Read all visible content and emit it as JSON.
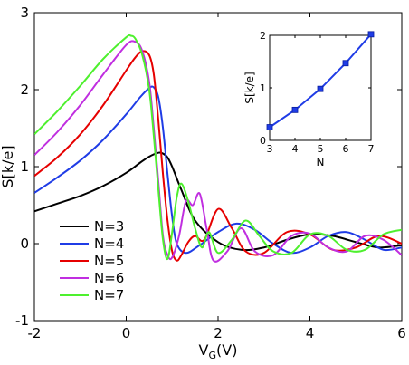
{
  "chart_data": [
    {
      "type": "line",
      "xlabel": "V",
      "xlabel_sub": "G",
      "xlabel_unit": "(V)",
      "ylabel": "S[k/e]",
      "xlim": [
        -2,
        6
      ],
      "ylim": [
        -1,
        3
      ],
      "xticks": [
        -2,
        0,
        2,
        4,
        6
      ],
      "yticks": [
        -1,
        0,
        1,
        2,
        3
      ],
      "grid": false,
      "legend_position": "lower-left",
      "series": [
        {
          "name": "N=3",
          "color": "#000000",
          "x": [
            -2,
            -1.5,
            -1,
            -0.5,
            0,
            0.3,
            0.5,
            0.7,
            0.8,
            0.9,
            1.0,
            1.2,
            1.5,
            2.0,
            2.5,
            3.0,
            3.5,
            4.0,
            4.5,
            5.0,
            5.5,
            6.0
          ],
          "y": [
            0.42,
            0.52,
            0.62,
            0.75,
            0.92,
            1.05,
            1.13,
            1.18,
            1.17,
            1.12,
            1.0,
            0.7,
            0.3,
            0.02,
            -0.08,
            -0.05,
            0.05,
            0.12,
            0.1,
            0.02,
            -0.05,
            -0.02
          ]
        },
        {
          "name": "N=4",
          "color": "#1f3ce6",
          "x": [
            -2,
            -1.5,
            -1,
            -0.5,
            0,
            0.3,
            0.5,
            0.6,
            0.7,
            0.8,
            0.9,
            1.0,
            1.1,
            1.3,
            1.6,
            2.0,
            2.4,
            2.8,
            3.2,
            3.6,
            4.0,
            4.4,
            4.8,
            5.2,
            5.6,
            6.0
          ],
          "y": [
            0.66,
            0.86,
            1.08,
            1.35,
            1.68,
            1.9,
            2.02,
            2.03,
            1.9,
            1.5,
            0.9,
            0.35,
            0.0,
            -0.12,
            -0.02,
            0.15,
            0.26,
            0.18,
            0.0,
            -0.12,
            -0.05,
            0.1,
            0.15,
            0.05,
            -0.08,
            -0.05
          ]
        },
        {
          "name": "N=5",
          "color": "#e60000",
          "x": [
            -2,
            -1.5,
            -1,
            -0.5,
            0,
            0.2,
            0.35,
            0.5,
            0.6,
            0.7,
            0.8,
            0.9,
            1.0,
            1.1,
            1.2,
            1.35,
            1.5,
            1.7,
            2.0,
            2.3,
            2.6,
            3.0,
            3.5,
            4.0,
            4.5,
            5.0,
            5.5,
            6.0
          ],
          "y": [
            0.88,
            1.12,
            1.42,
            1.8,
            2.25,
            2.42,
            2.5,
            2.45,
            2.2,
            1.6,
            0.9,
            0.3,
            -0.1,
            -0.22,
            -0.15,
            0.02,
            0.1,
            0.05,
            0.45,
            0.2,
            -0.1,
            -0.12,
            0.15,
            0.12,
            -0.08,
            -0.05,
            0.1,
            0.0
          ]
        },
        {
          "name": "N=6",
          "color": "#c02ee0",
          "x": [
            -2,
            -1.5,
            -1,
            -0.5,
            0,
            0.2,
            0.35,
            0.5,
            0.6,
            0.7,
            0.8,
            0.9,
            1.0,
            1.15,
            1.3,
            1.45,
            1.6,
            1.75,
            1.9,
            2.2,
            2.5,
            2.8,
            3.2,
            3.6,
            4.0,
            4.4,
            4.8,
            5.2,
            5.6,
            6.0
          ],
          "y": [
            1.15,
            1.45,
            1.8,
            2.2,
            2.58,
            2.62,
            2.5,
            2.1,
            1.5,
            0.8,
            0.1,
            -0.15,
            -0.18,
            0.1,
            0.55,
            0.5,
            0.65,
            0.2,
            -0.22,
            -0.1,
            0.2,
            -0.1,
            -0.15,
            0.1,
            0.13,
            -0.05,
            -0.1,
            0.1,
            0.05,
            -0.15
          ]
        },
        {
          "name": "N=7",
          "color": "#4ef02e",
          "x": [
            -2,
            -1.5,
            -1,
            -0.5,
            0,
            0.1,
            0.2,
            0.35,
            0.5,
            0.6,
            0.7,
            0.8,
            0.9,
            1.0,
            1.1,
            1.2,
            1.35,
            1.5,
            1.65,
            1.8,
            2.0,
            2.3,
            2.6,
            2.9,
            3.2,
            3.6,
            4.0,
            4.4,
            4.8,
            5.2,
            5.6,
            6.0
          ],
          "y": [
            1.42,
            1.72,
            2.05,
            2.4,
            2.68,
            2.7,
            2.66,
            2.45,
            2.0,
            1.4,
            0.7,
            0.05,
            -0.2,
            0.15,
            0.6,
            0.78,
            0.55,
            0.2,
            -0.05,
            0.15,
            -0.12,
            0.05,
            0.3,
            0.1,
            -0.1,
            -0.12,
            0.12,
            0.1,
            -0.08,
            -0.08,
            0.12,
            0.18
          ]
        }
      ]
    },
    {
      "type": "line",
      "xlabel": "N",
      "ylabel": "S[k/e]",
      "xlim": [
        3,
        7
      ],
      "ylim": [
        0,
        2
      ],
      "xticks": [
        3,
        4,
        5,
        6,
        7
      ],
      "yticks": [
        0,
        1,
        2
      ],
      "grid": false,
      "series": [
        {
          "color": "#1f3ce6",
          "marker": "square",
          "x": [
            3,
            4,
            5,
            6,
            7
          ],
          "y": [
            0.25,
            0.58,
            0.98,
            1.47,
            2.02
          ]
        }
      ]
    }
  ]
}
